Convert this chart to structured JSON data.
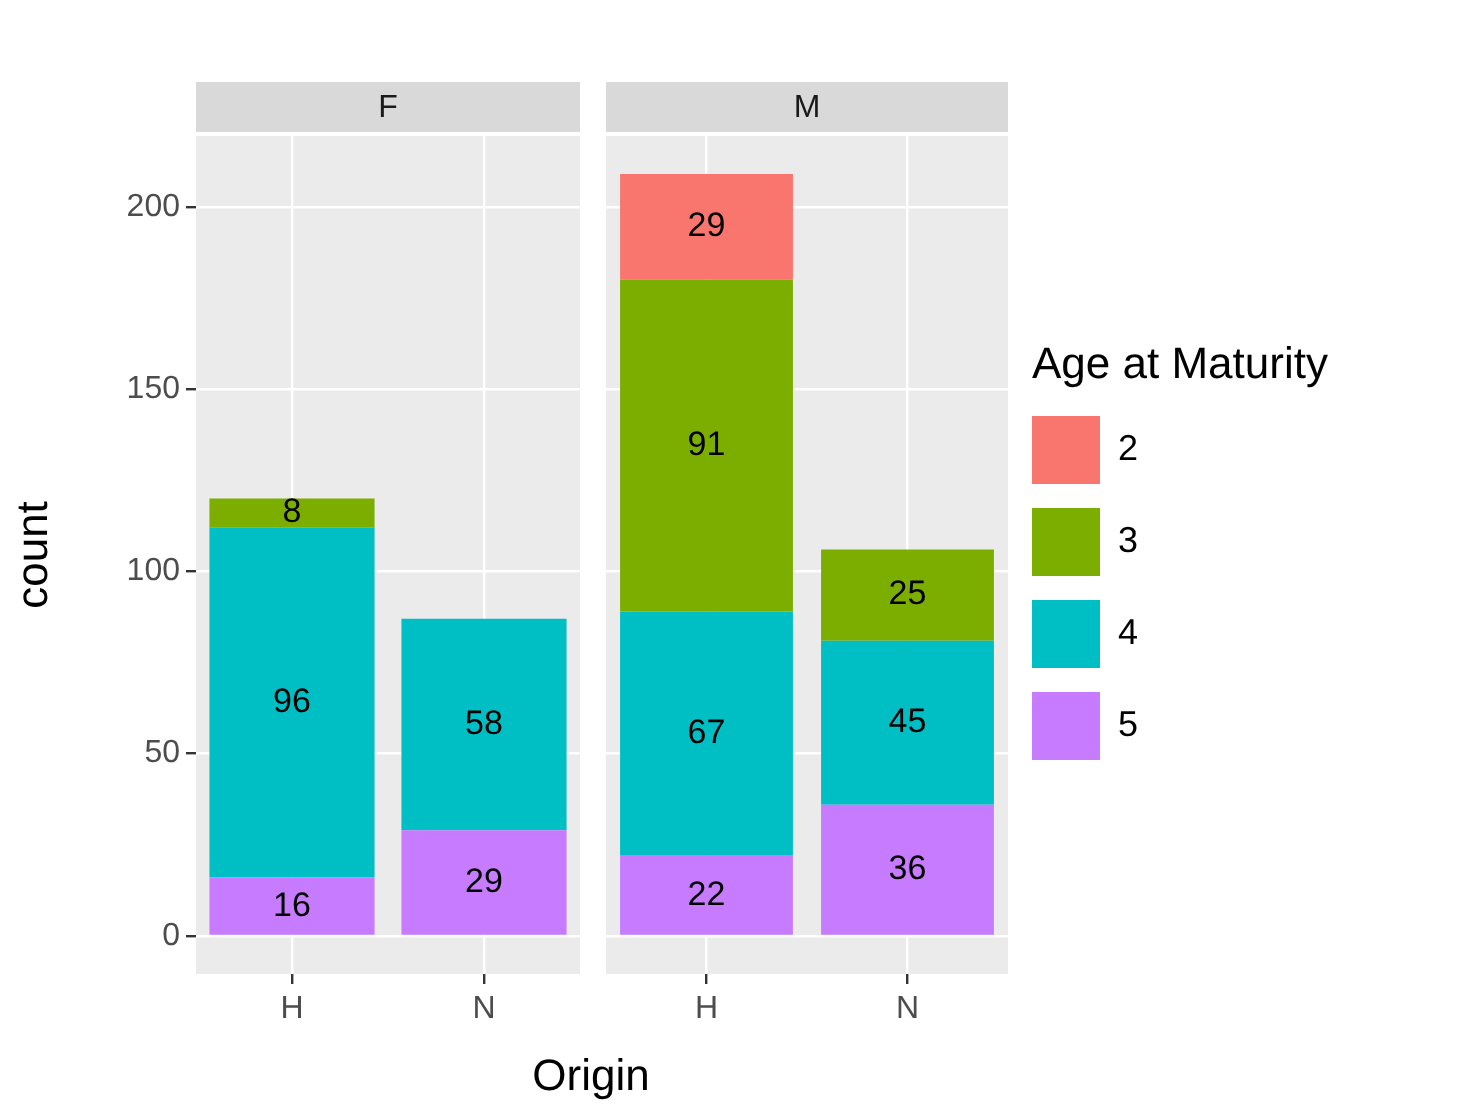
{
  "chart_data": [
    {
      "type": "bar",
      "title": "F",
      "ylabel": "count",
      "categories": [
        "H",
        "N"
      ],
      "stacked": true,
      "data_labels": true,
      "grid": true,
      "legend": false,
      "ylim": [
        -10.45,
        219.45
      ],
      "yticks": [
        0,
        50,
        100,
        150,
        200
      ],
      "series": [
        {
          "color": "#c77cff",
          "values": [
            16,
            29
          ]
        },
        {
          "color": "#00bfc4",
          "values": [
            96,
            58
          ]
        },
        {
          "color": "#7cae00",
          "values": [
            8,
            null
          ]
        }
      ]
    },
    {
      "type": "bar",
      "title": "M",
      "xlabel": "Origin",
      "legend_title": "Age at Maturity",
      "legend": "right",
      "tick_labels": "x",
      "categories": [
        "H",
        "N"
      ],
      "stacked": true,
      "data_labels": true,
      "grid": true,
      "ylim": [
        -10.45,
        219.45
      ],
      "yticks": [
        0,
        50,
        100,
        150,
        200
      ],
      "series": [
        {
          "name": "5",
          "color": "#c77cff",
          "values": [
            22,
            36
          ]
        },
        {
          "name": "4",
          "color": "#00bfc4",
          "values": [
            67,
            45
          ]
        },
        {
          "name": "3",
          "color": "#7cae00",
          "values": [
            91,
            25
          ]
        },
        {
          "name": "2",
          "color": "#f8766d",
          "values": [
            29,
            null
          ]
        }
      ]
    }
  ]
}
